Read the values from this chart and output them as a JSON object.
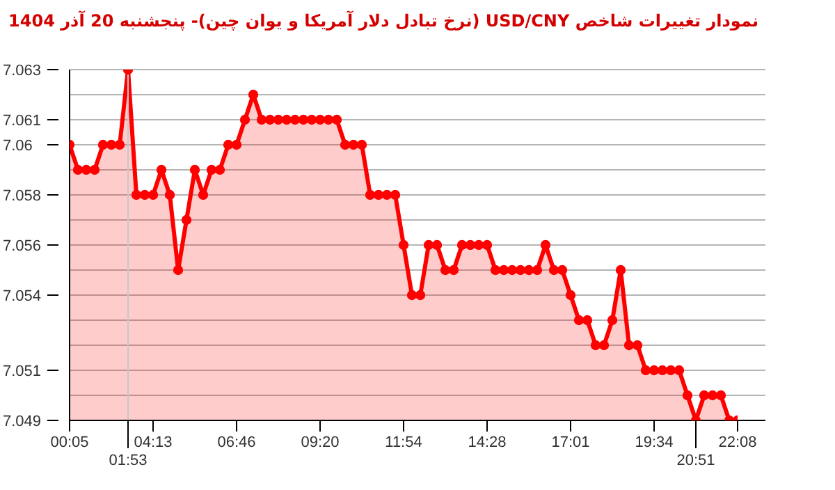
{
  "chart_data": {
    "type": "area",
    "title": "نمودار تغییرات شاخص USD/CNY (نرخ تبادل دلار آمریکا و یوان چین)- پنجشنبه  20 آذر 1404",
    "categories": [
      "00:05",
      null,
      null,
      null,
      null,
      null,
      null,
      "01:53",
      null,
      null,
      "04:13",
      null,
      null,
      null,
      null,
      null,
      null,
      null,
      null,
      null,
      "06:46",
      null,
      null,
      null,
      null,
      null,
      null,
      null,
      null,
      null,
      "09:20",
      null,
      null,
      null,
      null,
      null,
      null,
      null,
      null,
      null,
      "11:54",
      null,
      null,
      null,
      null,
      null,
      null,
      null,
      null,
      null,
      "14:28",
      null,
      null,
      null,
      null,
      null,
      null,
      null,
      null,
      null,
      "17:01",
      null,
      null,
      null,
      null,
      null,
      null,
      null,
      null,
      null,
      "19:34",
      null,
      null,
      null,
      null,
      "20:51",
      null,
      null,
      null,
      null,
      "22:08"
    ],
    "series": [
      {
        "color": "#ff0000",
        "values": [
          7.06,
          7.059,
          7.059,
          7.059,
          7.06,
          7.06,
          7.06,
          7.063,
          7.058,
          7.058,
          7.058,
          7.059,
          7.058,
          7.055,
          7.057,
          7.059,
          7.058,
          7.059,
          7.059,
          7.06,
          7.06,
          7.061,
          7.062,
          7.061,
          7.061,
          7.061,
          7.061,
          7.061,
          7.061,
          7.061,
          7.061,
          7.061,
          7.061,
          7.06,
          7.06,
          7.06,
          7.058,
          7.058,
          7.058,
          7.058,
          7.056,
          7.054,
          7.054,
          7.056,
          7.056,
          7.055,
          7.055,
          7.056,
          7.056,
          7.056,
          7.056,
          7.055,
          7.055,
          7.055,
          7.055,
          7.055,
          7.055,
          7.056,
          7.055,
          7.055,
          7.054,
          7.053,
          7.053,
          7.052,
          7.052,
          7.053,
          7.055,
          7.052,
          7.052,
          7.051,
          7.051,
          7.051,
          7.051,
          7.051,
          7.05,
          7.049,
          7.05,
          7.05,
          7.05,
          7.049,
          7.049
        ]
      }
    ],
    "ylim": [
      7.049,
      7.063
    ],
    "yticks": [
      7.049,
      {
        "value": 7.05,
        "label": null
      },
      7.051,
      {
        "value": 7.052,
        "label": null
      },
      {
        "value": 7.053,
        "label": null
      },
      7.054,
      {
        "value": 7.055,
        "label": null
      },
      7.056,
      {
        "value": 7.057,
        "label": null
      },
      7.058,
      {
        "value": 7.059,
        "label": null
      },
      7.06,
      7.061,
      {
        "value": 7.062,
        "label": null
      },
      7.063
    ],
    "ref_lines": [
      {
        "axis": "x",
        "value": "01:53",
        "color": "#c8c8c8"
      }
    ],
    "grid": "y",
    "marker": "circle",
    "line_style": "solid"
  }
}
